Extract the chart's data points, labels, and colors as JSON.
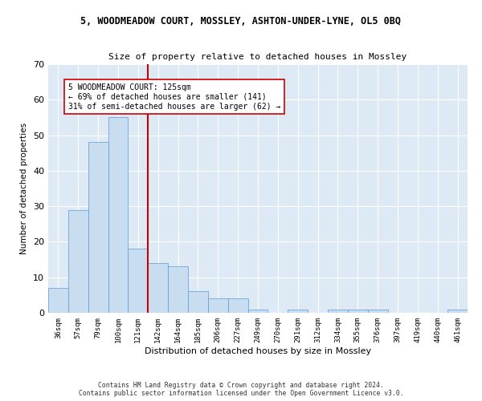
{
  "title_line1": "5, WOODMEADOW COURT, MOSSLEY, ASHTON-UNDER-LYNE, OL5 0BQ",
  "title_line2": "Size of property relative to detached houses in Mossley",
  "xlabel": "Distribution of detached houses by size in Mossley",
  "ylabel": "Number of detached properties",
  "bar_color": "#c8ddf0",
  "bar_edge_color": "#5b9bd5",
  "background_color": "#dde9f5",
  "categories": [
    "36sqm",
    "57sqm",
    "79sqm",
    "100sqm",
    "121sqm",
    "142sqm",
    "164sqm",
    "185sqm",
    "206sqm",
    "227sqm",
    "249sqm",
    "270sqm",
    "291sqm",
    "312sqm",
    "334sqm",
    "355sqm",
    "376sqm",
    "397sqm",
    "419sqm",
    "440sqm",
    "461sqm"
  ],
  "values": [
    7,
    29,
    48,
    55,
    18,
    14,
    13,
    6,
    4,
    4,
    1,
    0,
    1,
    0,
    1,
    1,
    1,
    0,
    0,
    0,
    1
  ],
  "ylim": [
    0,
    70
  ],
  "yticks": [
    0,
    10,
    20,
    30,
    40,
    50,
    60,
    70
  ],
  "annotation_text_line1": "5 WOODMEADOW COURT: 125sqm",
  "annotation_text_line2": "← 69% of detached houses are smaller (141)",
  "annotation_text_line3": "31% of semi-detached houses are larger (62) →",
  "annotation_box_color": "#ffffff",
  "annotation_line_color": "#cc0000",
  "footer_line1": "Contains HM Land Registry data © Crown copyright and database right 2024.",
  "footer_line2": "Contains public sector information licensed under the Open Government Licence v3.0."
}
